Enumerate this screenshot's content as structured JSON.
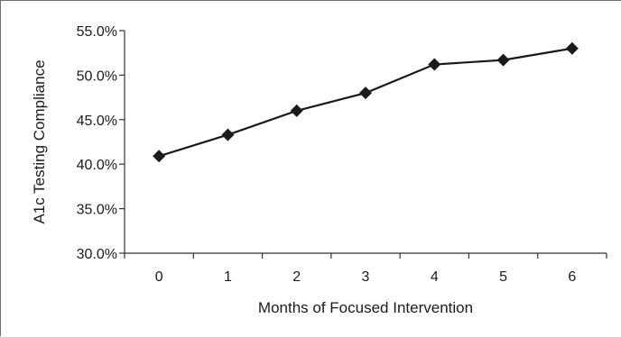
{
  "chart_data": {
    "type": "line",
    "title": "",
    "xlabel": "Months of Focused Intervention",
    "ylabel": "A1c Testing Compliance",
    "x": [
      0,
      1,
      2,
      3,
      4,
      5,
      6
    ],
    "x_tick_labels": [
      "0",
      "1",
      "2",
      "3",
      "4",
      "5",
      "6"
    ],
    "y_tick_values": [
      30,
      35,
      40,
      45,
      50,
      55
    ],
    "y_tick_labels": [
      "30.0%",
      "35.0%",
      "40.0%",
      "45.0%",
      "50.0%",
      "55.0%"
    ],
    "ylim": [
      30,
      55
    ],
    "grid": false,
    "legend": "none",
    "series": [
      {
        "color": "#1a1a1a",
        "marker": "diamond",
        "values": [
          40.9,
          43.3,
          46.0,
          48.0,
          51.2,
          51.7,
          53.0
        ]
      }
    ]
  }
}
